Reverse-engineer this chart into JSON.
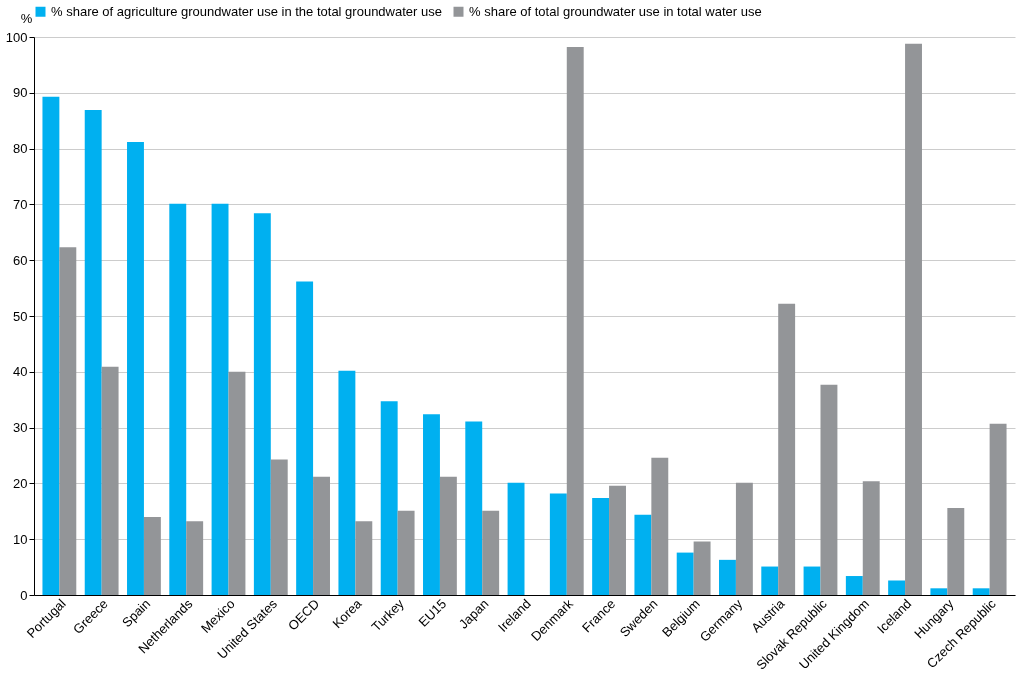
{
  "chart_data": {
    "type": "bar",
    "ylabel": "%",
    "categories": [
      "Portugal",
      "Greece",
      "Spain",
      "Netherlands",
      "Mexico",
      "United States",
      "OECD",
      "Korea",
      "Turkey",
      "EU15",
      "Japan",
      "Ireland",
      "Denmark",
      "France",
      "Sweden",
      "Belgium",
      "Germany",
      "Austria",
      "Slovak Republic",
      "United Kingdom",
      "Iceland",
      "Hungary",
      "Czech Republic"
    ],
    "series": [
      {
        "name": "% share of agriculture groundwater use in the total groundwater use",
        "color": "#00b0f0",
        "values": [
          89.3,
          86.9,
          81.2,
          70.1,
          70.1,
          68.4,
          56.2,
          40.2,
          34.7,
          32.4,
          31.1,
          20.1,
          18.2,
          17.4,
          14.4,
          7.6,
          6.3,
          5.1,
          5.1,
          3.4,
          2.6,
          1.2,
          1.2
        ]
      },
      {
        "name": "% share of total groundwater use in total water use",
        "color": "#939598",
        "values": [
          62.3,
          40.9,
          14.0,
          13.2,
          40.0,
          24.3,
          21.2,
          13.2,
          15.1,
          21.2,
          15.1,
          null,
          98.2,
          19.6,
          24.6,
          9.6,
          20.1,
          52.2,
          37.7,
          20.4,
          98.8,
          15.6,
          30.7
        ]
      }
    ],
    "ylim": [
      0,
      100
    ],
    "yticks": [
      0,
      10,
      20,
      30,
      40,
      50,
      60,
      70,
      80,
      90,
      100
    ],
    "grid": "y",
    "legend": "top"
  }
}
